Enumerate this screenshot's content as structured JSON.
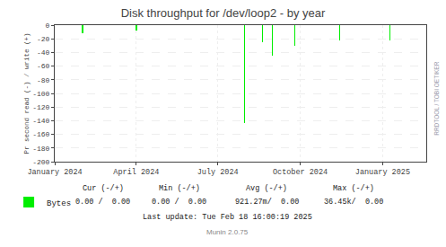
{
  "chart_data": {
    "type": "bar",
    "title": "Disk throughput for /dev/loop2 - by year",
    "ylabel": "Pr second read (-) / write (+)",
    "x": [
      1706745600,
      1711929600,
      1722384000,
      1724112000,
      1725062400,
      1727222400,
      1731542400,
      1736380800
    ],
    "series": [
      {
        "name": "Bytes",
        "color": "#00ee00",
        "values": [
          -12,
          -8,
          -143,
          -25,
          -45,
          -30,
          -22,
          -22
        ]
      }
    ],
    "xlim": [
      1704067200,
      1739894419
    ],
    "xticks": [
      {
        "value": 1704067200,
        "label": "January 2024"
      },
      {
        "value": 1711929600,
        "label": "April 2024"
      },
      {
        "value": 1719792000,
        "label": "July 2024"
      },
      {
        "value": 1727740800,
        "label": "October 2024"
      },
      {
        "value": 1735689600,
        "label": "January 2025"
      }
    ],
    "ylim": [
      -200,
      0
    ],
    "yticks": [
      0,
      -20,
      -40,
      -60,
      -80,
      -100,
      -120,
      -140,
      -160,
      -180,
      -200
    ],
    "grid": true,
    "legend": "bottom left",
    "annotations": [
      "Cur (-/+)",
      "Min (-/+)",
      "Avg (-/+)",
      "Max (-/+)",
      "0.00 /  0.00",
      "0.00 /  0.00",
      "921.27m/  0.00",
      "36.45k/  0.00",
      "Last update: Tue Feb 18 16:00:19 2025",
      "Munin 2.0.75",
      "RRDTOOL / TOBI OETIKER"
    ]
  }
}
